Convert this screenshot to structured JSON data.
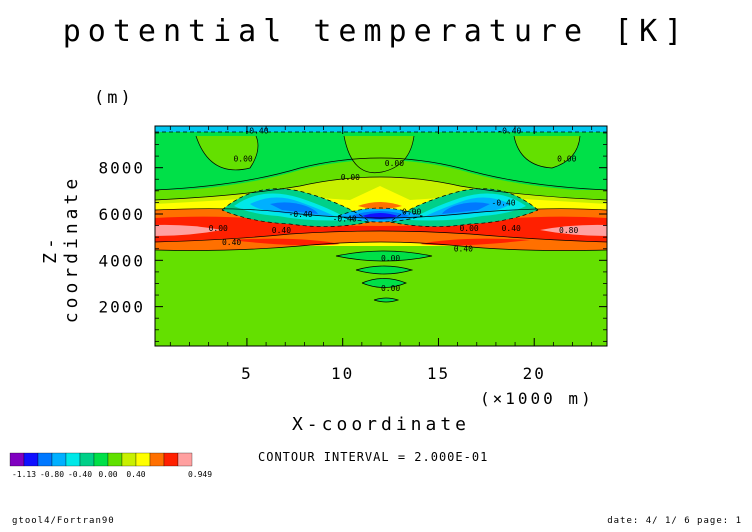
{
  "chart_data": {
    "type": "heatmap",
    "title": "potential temperature [K]",
    "xlabel": "X-coordinate",
    "ylabel": "Z-coordinate",
    "x_unit": "(×1000 m)",
    "y_unit": "(m)",
    "xlim": [
      0.2,
      23.8
    ],
    "ylim": [
      300,
      9800
    ],
    "x_ticks": [
      5,
      10,
      15,
      20
    ],
    "y_ticks": [
      2000,
      4000,
      6000,
      8000
    ],
    "contour_interval": "CONTOUR INTERVAL = 2.000E-01",
    "contour_labels": [
      {
        "text": "-0.40",
        "x": 5.5,
        "y": 9600
      },
      {
        "text": "-0.40",
        "x": 18.7,
        "y": 9600
      },
      {
        "text": "0.00",
        "x": 4.8,
        "y": 8400
      },
      {
        "text": "0.00",
        "x": 12.7,
        "y": 8200
      },
      {
        "text": "0.00",
        "x": 21.7,
        "y": 8400
      },
      {
        "text": "0.00",
        "x": 10.4,
        "y": 7600
      },
      {
        "text": "-0.40",
        "x": 7.8,
        "y": 6000
      },
      {
        "text": "-0.40",
        "x": 18.4,
        "y": 6500
      },
      {
        "text": "-0.40",
        "x": 10.1,
        "y": 5800
      },
      {
        "text": "0.00",
        "x": 13.6,
        "y": 6100
      },
      {
        "text": "0.00",
        "x": 3.5,
        "y": 5400
      },
      {
        "text": "0.40",
        "x": 6.8,
        "y": 5300
      },
      {
        "text": "0.40",
        "x": 4.2,
        "y": 4800
      },
      {
        "text": "0.00",
        "x": 16.6,
        "y": 5400
      },
      {
        "text": "0.40",
        "x": 18.8,
        "y": 5400
      },
      {
        "text": "0.80",
        "x": 21.8,
        "y": 5300
      },
      {
        "text": "0.40",
        "x": 16.3,
        "y": 4500
      },
      {
        "text": "0.00",
        "x": 12.5,
        "y": 4100
      },
      {
        "text": "0.00",
        "x": 12.5,
        "y": 2800
      }
    ],
    "legend": {
      "colors": [
        "#8000c0",
        "#1010ff",
        "#0078ff",
        "#00b0ff",
        "#00e8e8",
        "#00d088",
        "#00e048",
        "#60e000",
        "#c8f000",
        "#ffff00",
        "#ff7000",
        "#ff2000",
        "#ffa0a0"
      ],
      "labels": [
        "-1.13",
        "-0.80",
        "-0.40",
        "0.00",
        "0.40",
        "0.949"
      ]
    }
  },
  "footer": {
    "left": "gtool4/Fortran90",
    "right": "date: 4/ 1/ 6 page: 1"
  }
}
